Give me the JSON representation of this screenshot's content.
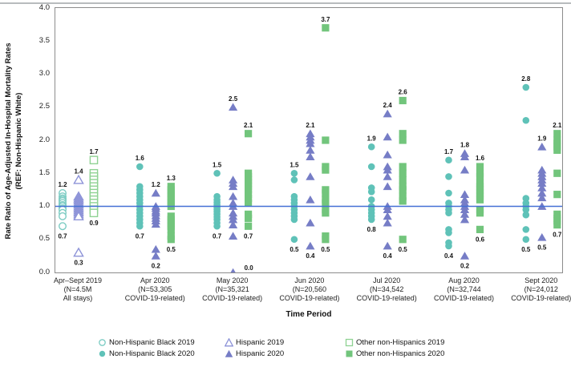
{
  "figure": {
    "x_axis_title": "Time Period",
    "ylabel_line1": "Rate Ratio of Age-Adjusted In-Hospital Mortality Rates",
    "ylabel_line2": "(REF: Non-Hispanic White)"
  },
  "colors": {
    "teal": "#5fc2b8",
    "teal_open": "#7cccc3",
    "purple": "#767dc6",
    "purple_open": "#8d93d8",
    "green": "#72c57c",
    "green_open": "#8fd293",
    "ref_line": "#4470d6",
    "plot_border": "#8c8c8c"
  },
  "legend": {
    "items": [
      {
        "label": "Non-Hispanic Black 2019",
        "marker": "circle",
        "open": true,
        "color": "#5fc2b8",
        "open_color": "#7cccc3"
      },
      {
        "label": "Non-Hispanic Black 2020",
        "marker": "circle",
        "open": false,
        "color": "#5fc2b8",
        "open_color": "#7cccc3"
      },
      {
        "label": "Hispanic 2019",
        "marker": "triangle",
        "open": true,
        "color": "#767dc6",
        "open_color": "#8d93d8"
      },
      {
        "label": "Hispanic 2020",
        "marker": "triangle",
        "open": false,
        "color": "#767dc6",
        "open_color": "#8d93d8"
      },
      {
        "label": "Other non-Hispanics 2019",
        "marker": "square",
        "open": true,
        "color": "#72c57c",
        "open_color": "#8fd293"
      },
      {
        "label": "Other non-Hispanics 2020",
        "marker": "square",
        "open": false,
        "color": "#72c57c",
        "open_color": "#8fd293"
      }
    ]
  },
  "chart_data": {
    "type": "scatter",
    "title": "",
    "xlabel": "Time Period",
    "ylabel": "Rate Ratio of Age-Adjusted In-Hospital Mortality Rates (REF: Non-Hispanic White)",
    "ylim": [
      0.0,
      4.0
    ],
    "yticks": [
      "0.0",
      "0.5",
      "1.0",
      "1.5",
      "2.0",
      "2.5",
      "3.0",
      "3.5",
      "4.0"
    ],
    "ref_line_y": 1.0,
    "legend_position": "bottom",
    "grid": false,
    "series_meta": [
      {
        "key": "black",
        "name": "Non-Hispanic Black",
        "marker": "circle",
        "color": "#5fc2b8",
        "open_color": "#7cccc3",
        "dx": -20
      },
      {
        "key": "hispanic",
        "name": "Hispanic",
        "marker": "triangle",
        "color": "#767dc6",
        "open_color": "#8d93d8",
        "dx": 0
      },
      {
        "key": "other",
        "name": "Other non-Hispanics",
        "marker": "square",
        "color": "#72c57c",
        "open_color": "#8fd293",
        "dx": 19
      }
    ],
    "groups": [
      {
        "label_lines": [
          "Apr–Sept 2019",
          "(N=4.5M",
          "All stays)"
        ],
        "open": true,
        "series": {
          "black": {
            "points": [
              1.2,
              1.15,
              1.12,
              1.1,
              1.08,
              1.05,
              1.02,
              1.0,
              0.97,
              0.95,
              0.9,
              0.85,
              0.7
            ],
            "max_label": "1.2",
            "min_label": "0.7"
          },
          "hispanic": {
            "points": [
              1.4,
              1.15,
              1.12,
              1.09,
              1.06,
              1.03,
              1.0,
              0.97,
              0.94,
              0.91,
              0.88,
              0.85,
              0.3
            ],
            "max_label": "1.4",
            "min_label": "0.3"
          },
          "other": {
            "points": [
              1.7,
              1.5,
              1.45,
              1.4,
              1.35,
              1.3,
              1.25,
              1.2,
              1.15,
              1.1,
              1.05,
              1.0,
              0.95,
              0.9
            ],
            "max_label": "1.7",
            "min_label": "0.9"
          }
        }
      },
      {
        "label_lines": [
          "Apr 2020",
          "(N=53,305",
          "COVID-19-related)"
        ],
        "open": false,
        "series": {
          "black": {
            "points": [
              1.6,
              1.3,
              1.25,
              1.2,
              1.15,
              1.1,
              1.05,
              1.0,
              0.95,
              0.9,
              0.85,
              0.8,
              0.75,
              0.7
            ],
            "max_label": "1.6",
            "min_label": "0.7"
          },
          "hispanic": {
            "points": [
              1.2,
              1.0,
              0.97,
              0.93,
              0.9,
              0.86,
              0.82,
              0.78,
              0.73,
              0.35,
              0.25
            ],
            "max_label": "1.2",
            "min_label": "0.2"
          },
          "other": {
            "points": [
              1.3,
              1.25,
              1.2,
              1.15,
              1.1,
              1.05,
              1.0,
              0.85,
              0.8,
              0.75,
              0.7,
              0.65,
              0.55,
              0.5
            ],
            "max_label": "1.3",
            "min_label": "0.5"
          }
        }
      },
      {
        "label_lines": [
          "May 2020",
          "(N=35,321",
          "COVID-19-related)"
        ],
        "open": false,
        "series": {
          "black": {
            "points": [
              1.5,
              1.15,
              1.1,
              1.06,
              1.02,
              0.98,
              0.95,
              0.92,
              0.88,
              0.84,
              0.8,
              0.75,
              0.7
            ],
            "max_label": "1.5",
            "min_label": "0.7"
          },
          "hispanic": {
            "points": [
              2.5,
              1.4,
              1.35,
              1.3,
              1.15,
              1.05,
              1.0,
              0.9,
              0.85,
              0.8,
              0.72,
              0.55,
              0.0
            ],
            "max_label": "2.5",
            "min_label": "0.0"
          },
          "other": {
            "points": [
              2.1,
              1.5,
              1.45,
              1.4,
              1.35,
              1.3,
              1.25,
              1.18,
              1.12,
              1.05,
              0.88,
              0.82,
              0.7
            ],
            "max_label": "2.1",
            "min_label": "0.7"
          }
        }
      },
      {
        "label_lines": [
          "Jun 2020",
          "(N=20,560",
          "COVID-19-related)"
        ],
        "open": false,
        "series": {
          "black": {
            "points": [
              1.5,
              1.4,
              1.15,
              1.1,
              1.05,
              1.0,
              0.95,
              0.9,
              0.85,
              0.8,
              0.5
            ],
            "max_label": "1.5",
            "min_label": "0.5"
          },
          "hispanic": {
            "points": [
              2.1,
              2.05,
              2.0,
              1.95,
              1.85,
              1.75,
              1.45,
              1.1,
              0.75,
              0.4
            ],
            "max_label": "2.1",
            "min_label": "0.4"
          },
          "other": {
            "points": [
              3.7,
              2.0,
              1.6,
              1.55,
              1.25,
              1.2,
              1.1,
              1.05,
              0.95,
              0.9,
              0.55,
              0.5
            ],
            "max_label": "3.7",
            "min_label": "0.5"
          }
        }
      },
      {
        "label_lines": [
          "Jul 2020",
          "(N=34,542",
          "COVID-19-related)"
        ],
        "open": false,
        "series": {
          "black": {
            "points": [
              1.9,
              1.6,
              1.28,
              1.22,
              1.1,
              1.0,
              0.95,
              0.9,
              0.85,
              0.8
            ],
            "max_label": "1.9",
            "min_label": "0.8"
          },
          "hispanic": {
            "points": [
              2.4,
              2.05,
              1.78,
              1.6,
              1.55,
              1.45,
              1.3,
              1.0,
              0.95,
              0.85,
              0.75,
              0.4
            ],
            "max_label": "2.4",
            "min_label": "0.4"
          },
          "other": {
            "points": [
              2.6,
              2.1,
              2.0,
              1.6,
              1.5,
              1.4,
              1.3,
              1.25,
              1.15,
              1.08,
              0.5
            ],
            "max_label": "2.6",
            "min_label": "0.5"
          }
        }
      },
      {
        "label_lines": [
          "Aug 2020",
          "(N=32,744",
          "COVID-19-related)"
        ],
        "open": false,
        "series": {
          "black": {
            "points": [
              1.7,
              1.45,
              1.2,
              1.05,
              1.0,
              0.95,
              0.9,
              0.65,
              0.6,
              0.45,
              0.4
            ],
            "max_label": "1.7",
            "min_label": "0.4"
          },
          "hispanic": {
            "points": [
              1.8,
              1.75,
              1.55,
              1.18,
              1.1,
              1.05,
              1.0,
              0.95,
              0.88,
              0.8,
              0.25
            ],
            "max_label": "1.8",
            "min_label": "0.2"
          },
          "other": {
            "points": [
              1.6,
              1.5,
              1.45,
              1.35,
              1.3,
              1.25,
              1.2,
              1.15,
              1.1,
              0.95,
              0.9,
              0.65
            ],
            "max_label": "1.6",
            "min_label": "0.6"
          }
        }
      },
      {
        "label_lines": [
          "Sept 2020",
          "(N=24,012",
          "COVID-19-related)"
        ],
        "open": false,
        "series": {
          "black": {
            "points": [
              2.8,
              2.3,
              1.12,
              1.05,
              1.0,
              0.95,
              0.87,
              0.65,
              0.5
            ],
            "max_label": "2.8",
            "min_label": "0.5"
          },
          "hispanic": {
            "points": [
              1.9,
              1.55,
              1.5,
              1.45,
              1.4,
              1.35,
              1.28,
              1.2,
              1.13,
              1.0,
              0.53
            ],
            "max_label": "1.9",
            "min_label": "0.5"
          },
          "other": {
            "points": [
              2.1,
              2.0,
              1.95,
              1.9,
              1.85,
              1.5,
              1.18,
              0.88,
              0.82,
              0.78,
              0.72
            ],
            "max_label": "2.1",
            "min_label": "0.7"
          }
        }
      }
    ]
  }
}
